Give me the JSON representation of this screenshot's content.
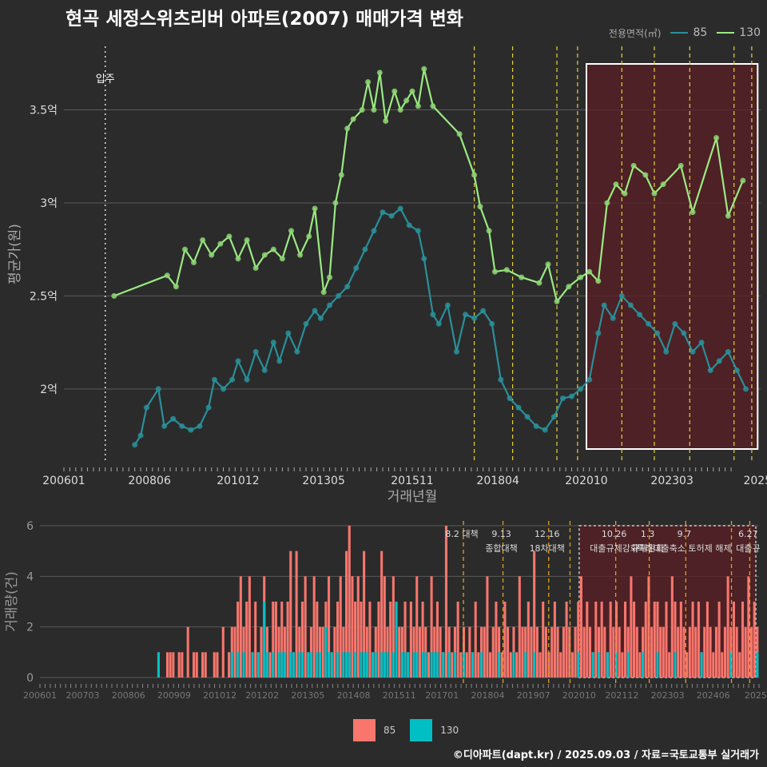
{
  "title": "현곡 세정스위츠리버 아파트(2007) 매매가격 변화",
  "legend_title": "전용면적(㎡)",
  "footer": "©디아파트(dapt.kr) / 2025.09.03 / 자료=국토교통부 실거래가",
  "colors": {
    "s85_line": "#2a8f99",
    "s85_point": "#2a8f99",
    "s130_line": "#9bea82",
    "s130_point": "#8ed574",
    "bar85": "#f8766d",
    "bar130": "#00bfc4",
    "policy": "#e8d23a",
    "highlight": "#5a1f24"
  },
  "chart_data": [
    {
      "type": "line",
      "name": "price",
      "xlabel": "거래년월",
      "ylabel": "평균가(원)",
      "x_ticks": [
        "200601",
        "200806",
        "201012",
        "201305",
        "201511",
        "201804",
        "202010",
        "202303",
        "2025"
      ],
      "y_ticks": [
        "2억",
        "2.5억",
        "3억",
        "3.5억"
      ],
      "y_tick_values": [
        2.0,
        2.5,
        3.0,
        3.5
      ],
      "ylim": [
        1.6,
        3.85
      ],
      "xlim": [
        "2006-01",
        "2025-09"
      ],
      "annotations": [
        {
          "text": "입주",
          "x": "2007-03"
        }
      ],
      "policy_dates": [
        "2017-08",
        "2018-09",
        "2019-12",
        "2020-07",
        "2021-10",
        "2022-09",
        "2023-09",
        "2024-12",
        "2025-06"
      ],
      "highlight_range": [
        "2020-10",
        "2025-08"
      ],
      "series": [
        {
          "name": "85",
          "points": [
            [
              "2008-01",
              1.7
            ],
            [
              "2008-03",
              1.75
            ],
            [
              "2008-05",
              1.9
            ],
            [
              "2008-09",
              2.0
            ],
            [
              "2008-11",
              1.8
            ],
            [
              "2009-02",
              1.84
            ],
            [
              "2009-05",
              1.8
            ],
            [
              "2009-08",
              1.78
            ],
            [
              "2009-11",
              1.8
            ],
            [
              "2010-02",
              1.9
            ],
            [
              "2010-04",
              2.05
            ],
            [
              "2010-07",
              2.0
            ],
            [
              "2010-10",
              2.05
            ],
            [
              "2010-12",
              2.15
            ],
            [
              "2011-03",
              2.05
            ],
            [
              "2011-06",
              2.2
            ],
            [
              "2011-09",
              2.1
            ],
            [
              "2011-12",
              2.25
            ],
            [
              "2012-02",
              2.15
            ],
            [
              "2012-05",
              2.3
            ],
            [
              "2012-08",
              2.2
            ],
            [
              "2012-11",
              2.35
            ],
            [
              "2013-02",
              2.42
            ],
            [
              "2013-04",
              2.38
            ],
            [
              "2013-07",
              2.45
            ],
            [
              "2013-10",
              2.5
            ],
            [
              "2014-01",
              2.55
            ],
            [
              "2014-04",
              2.65
            ],
            [
              "2014-07",
              2.75
            ],
            [
              "2014-10",
              2.85
            ],
            [
              "2015-01",
              2.95
            ],
            [
              "2015-04",
              2.93
            ],
            [
              "2015-07",
              2.97
            ],
            [
              "2015-10",
              2.88
            ],
            [
              "2016-01",
              2.85
            ],
            [
              "2016-03",
              2.7
            ],
            [
              "2016-06",
              2.4
            ],
            [
              "2016-08",
              2.35
            ],
            [
              "2016-11",
              2.45
            ],
            [
              "2017-02",
              2.2
            ],
            [
              "2017-05",
              2.4
            ],
            [
              "2017-08",
              2.38
            ],
            [
              "2017-11",
              2.42
            ],
            [
              "2018-02",
              2.35
            ],
            [
              "2018-05",
              2.05
            ],
            [
              "2018-08",
              1.95
            ],
            [
              "2018-11",
              1.9
            ],
            [
              "2019-02",
              1.85
            ],
            [
              "2019-05",
              1.8
            ],
            [
              "2019-08",
              1.78
            ],
            [
              "2019-11",
              1.85
            ],
            [
              "2020-02",
              1.95
            ],
            [
              "2020-05",
              1.96
            ],
            [
              "2020-08",
              2.0
            ],
            [
              "2020-11",
              2.05
            ],
            [
              "2021-02",
              2.3
            ],
            [
              "2021-04",
              2.45
            ],
            [
              "2021-07",
              2.38
            ],
            [
              "2021-10",
              2.5
            ],
            [
              "2022-01",
              2.45
            ],
            [
              "2022-04",
              2.4
            ],
            [
              "2022-07",
              2.35
            ],
            [
              "2022-10",
              2.3
            ],
            [
              "2023-01",
              2.2
            ],
            [
              "2023-04",
              2.35
            ],
            [
              "2023-07",
              2.3
            ],
            [
              "2023-10",
              2.2
            ],
            [
              "2024-01",
              2.25
            ],
            [
              "2024-04",
              2.1
            ],
            [
              "2024-07",
              2.15
            ],
            [
              "2024-10",
              2.2
            ],
            [
              "2025-01",
              2.1
            ],
            [
              "2025-04",
              2.0
            ]
          ]
        },
        {
          "name": "130",
          "points": [
            [
              "2007-06",
              2.5
            ],
            [
              "2008-12",
              2.61
            ],
            [
              "2009-03",
              2.55
            ],
            [
              "2009-06",
              2.75
            ],
            [
              "2009-09",
              2.68
            ],
            [
              "2009-12",
              2.8
            ],
            [
              "2010-03",
              2.72
            ],
            [
              "2010-06",
              2.78
            ],
            [
              "2010-09",
              2.82
            ],
            [
              "2010-12",
              2.7
            ],
            [
              "2011-03",
              2.8
            ],
            [
              "2011-06",
              2.65
            ],
            [
              "2011-09",
              2.72
            ],
            [
              "2011-12",
              2.75
            ],
            [
              "2012-03",
              2.7
            ],
            [
              "2012-06",
              2.85
            ],
            [
              "2012-09",
              2.72
            ],
            [
              "2012-12",
              2.82
            ],
            [
              "2013-02",
              2.97
            ],
            [
              "2013-05",
              2.52
            ],
            [
              "2013-07",
              2.6
            ],
            [
              "2013-09",
              3.0
            ],
            [
              "2013-11",
              3.15
            ],
            [
              "2014-01",
              3.4
            ],
            [
              "2014-03",
              3.45
            ],
            [
              "2014-06",
              3.5
            ],
            [
              "2014-08",
              3.65
            ],
            [
              "2014-10",
              3.5
            ],
            [
              "2014-12",
              3.7
            ],
            [
              "2015-02",
              3.44
            ],
            [
              "2015-05",
              3.6
            ],
            [
              "2015-07",
              3.5
            ],
            [
              "2015-09",
              3.55
            ],
            [
              "2015-11",
              3.6
            ],
            [
              "2016-01",
              3.52
            ],
            [
              "2016-03",
              3.72
            ],
            [
              "2016-06",
              3.52
            ],
            [
              "2017-03",
              3.37
            ],
            [
              "2017-08",
              3.15
            ],
            [
              "2017-10",
              2.98
            ],
            [
              "2018-01",
              2.85
            ],
            [
              "2018-03",
              2.63
            ],
            [
              "2018-07",
              2.64
            ],
            [
              "2018-12",
              2.6
            ],
            [
              "2019-06",
              2.57
            ],
            [
              "2019-09",
              2.67
            ],
            [
              "2019-12",
              2.47
            ],
            [
              "2020-04",
              2.55
            ],
            [
              "2020-08",
              2.6
            ],
            [
              "2020-11",
              2.63
            ],
            [
              "2021-02",
              2.58
            ],
            [
              "2021-05",
              3.0
            ],
            [
              "2021-08",
              3.1
            ],
            [
              "2021-11",
              3.05
            ],
            [
              "2022-02",
              3.2
            ],
            [
              "2022-06",
              3.15
            ],
            [
              "2022-09",
              3.05
            ],
            [
              "2022-12",
              3.1
            ],
            [
              "2023-06",
              3.2
            ],
            [
              "2023-10",
              2.95
            ],
            [
              "2024-06",
              3.35
            ],
            [
              "2024-10",
              2.93
            ],
            [
              "2025-03",
              3.12
            ]
          ]
        }
      ]
    },
    {
      "type": "bar",
      "name": "volume",
      "xlabel": "",
      "ylabel": "거래량(건)",
      "y_ticks": [
        "0",
        "2",
        "4",
        "6"
      ],
      "ylim": [
        0,
        6
      ],
      "x_ticks": [
        "200601",
        "200703",
        "200806",
        "200909",
        "201012",
        "201202",
        "201305",
        "201408",
        "201511",
        "201701",
        "201804",
        "201907",
        "202010",
        "202112",
        "202303",
        "202406",
        "2025"
      ],
      "policy_lines": [
        {
          "date": "2017-08",
          "label": "8.2 대책",
          "label2": ""
        },
        {
          "date": "2018-09",
          "label": "9.13",
          "label2": "종합대책"
        },
        {
          "date": "2019-12",
          "label": "12.16",
          "label2": "18차대책"
        },
        {
          "date": "2020-07",
          "label": "",
          "label2": ""
        },
        {
          "date": "2021-10",
          "label": "10.26",
          "label2": "대출규제강화"
        },
        {
          "date": "2022-09",
          "label": "1.3",
          "label2": "규제완화"
        },
        {
          "date": "2023-09",
          "label": "9.7",
          "label2": "특례대출축소 토허제 해제"
        },
        {
          "date": "2024-12",
          "label": "",
          "label2": ""
        },
        {
          "date": "2025-06",
          "label": "6.27",
          "label2": "대출규"
        }
      ],
      "highlight_range": [
        "2020-10",
        "2025-08"
      ],
      "series": [
        {
          "name": "85"
        },
        {
          "name": "130"
        }
      ],
      "volume85": [
        0,
        0,
        0,
        0,
        0,
        0,
        0,
        0,
        0,
        0,
        0,
        0,
        0,
        0,
        0,
        0,
        0,
        0,
        0,
        0,
        0,
        0,
        0,
        0,
        0,
        0,
        0,
        0,
        0,
        0,
        0,
        0,
        0,
        0,
        0,
        0,
        0,
        0,
        0,
        0,
        1,
        0,
        0,
        1,
        1,
        1,
        0,
        1,
        1,
        0,
        2,
        0,
        1,
        1,
        0,
        1,
        1,
        0,
        0,
        1,
        1,
        0,
        2,
        0,
        1,
        2,
        2,
        3,
        4,
        2,
        3,
        4,
        1,
        3,
        1,
        2,
        4,
        2,
        1,
        3,
        3,
        2,
        3,
        2,
        3,
        5,
        1,
        5,
        2,
        3,
        4,
        1,
        2,
        4,
        3,
        2,
        2,
        3,
        4,
        1,
        2,
        3,
        4,
        2,
        5,
        6,
        4,
        3,
        4,
        3,
        5,
        2,
        3,
        1,
        2,
        3,
        5,
        4,
        2,
        3,
        4,
        3,
        2,
        2,
        3,
        1,
        3,
        2,
        4,
        2,
        3,
        2,
        1,
        4,
        2,
        3,
        2,
        1,
        6,
        2,
        1,
        2,
        3,
        1,
        2,
        1,
        2,
        1,
        3,
        1,
        2,
        2,
        4,
        1,
        2,
        3,
        2,
        1,
        3,
        2,
        1,
        2,
        1,
        4,
        2,
        2,
        3,
        2,
        5,
        2,
        1,
        3,
        2,
        1,
        2,
        3,
        2,
        1,
        2,
        3,
        2,
        1,
        2,
        3,
        4,
        2,
        3,
        2,
        1,
        3,
        2,
        3,
        2,
        1,
        3,
        2,
        3,
        2,
        1,
        3,
        2,
        4,
        3,
        2,
        1,
        2,
        3,
        4,
        2,
        3,
        3,
        2,
        2,
        3,
        1,
        4,
        3,
        2,
        3,
        2,
        1,
        2,
        3,
        2,
        3,
        1,
        2,
        3,
        2,
        1,
        2,
        3,
        1,
        2,
        4,
        2,
        3,
        2,
        1,
        3,
        2,
        4,
        2,
        3,
        2
      ],
      "volume130": [
        0,
        0,
        0,
        0,
        0,
        0,
        0,
        0,
        0,
        0,
        0,
        0,
        0,
        0,
        0,
        0,
        0,
        0,
        0,
        0,
        0,
        0,
        0,
        0,
        0,
        0,
        0,
        0,
        0,
        0,
        0,
        0,
        0,
        0,
        0,
        0,
        0,
        0,
        0,
        0,
        1,
        0,
        0,
        0,
        0,
        0,
        0,
        0,
        0,
        0,
        0,
        0,
        0,
        0,
        0,
        0,
        0,
        0,
        0,
        0,
        0,
        0,
        0,
        0,
        0,
        1,
        0,
        1,
        0,
        1,
        0,
        0,
        1,
        0,
        1,
        0,
        3,
        1,
        0,
        1,
        0,
        1,
        1,
        1,
        0,
        1,
        1,
        0,
        1,
        1,
        0,
        1,
        1,
        0,
        1,
        1,
        0,
        2,
        1,
        1,
        0,
        1,
        0,
        1,
        1,
        1,
        0,
        1,
        0,
        1,
        1,
        1,
        0,
        1,
        1,
        0,
        1,
        1,
        1,
        0,
        1,
        3,
        0,
        1,
        1,
        1,
        0,
        1,
        1,
        0,
        1,
        1,
        0,
        1,
        1,
        1,
        0,
        1,
        0,
        1,
        0,
        1,
        0,
        0,
        1,
        0,
        0,
        1,
        0,
        0,
        1,
        0,
        0,
        0,
        0,
        0,
        1,
        0,
        0,
        0,
        0,
        1,
        0,
        0,
        0,
        1,
        0,
        0,
        1,
        0,
        0,
        0,
        0,
        0,
        0,
        0,
        0,
        0,
        0,
        0,
        0,
        0,
        0,
        1,
        0,
        0,
        0,
        0,
        1,
        0,
        1,
        0,
        0,
        1,
        0,
        0,
        1,
        0,
        0,
        0,
        1,
        0,
        0,
        0,
        0,
        1,
        0,
        0,
        0,
        0,
        1,
        0,
        0,
        0,
        0,
        0,
        1,
        0,
        0,
        0,
        0,
        0,
        0,
        0,
        0,
        1,
        0,
        0,
        0,
        0,
        0,
        0,
        0,
        0,
        0,
        1,
        0,
        0,
        0,
        0,
        0,
        0,
        0,
        0,
        1,
        0,
        0,
        0
      ]
    }
  ]
}
